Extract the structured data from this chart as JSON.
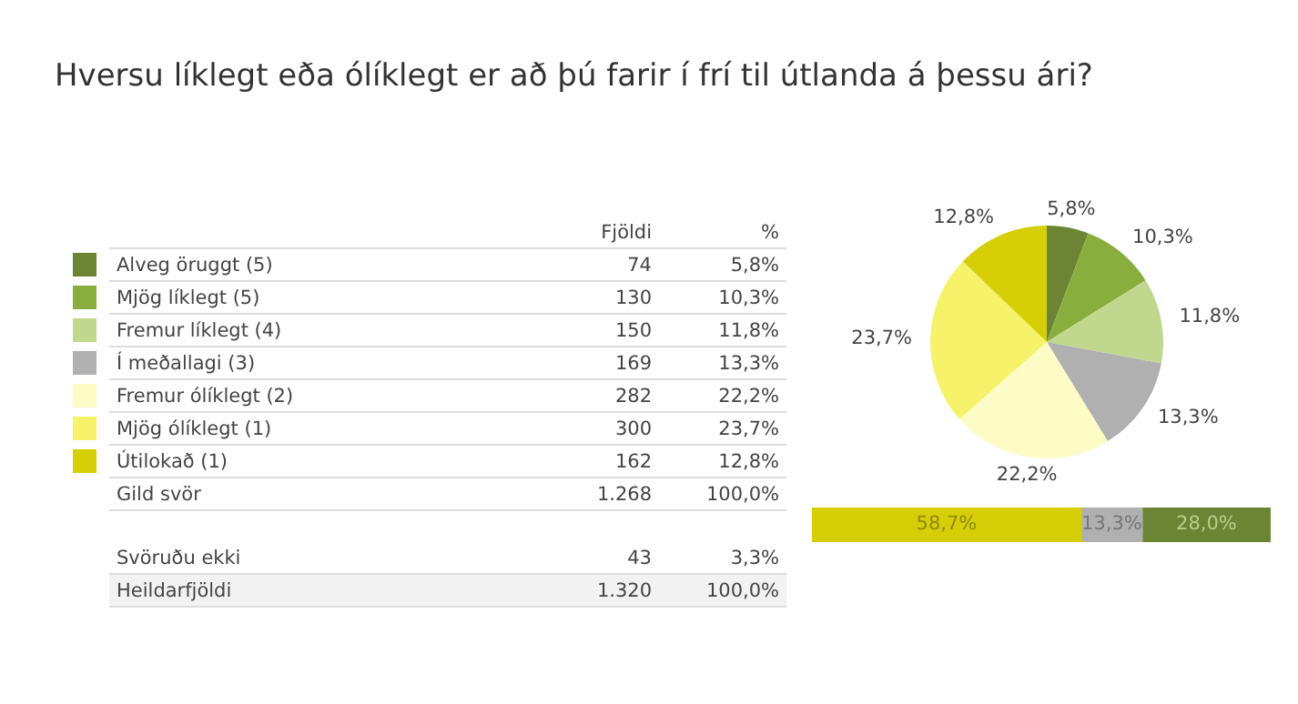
{
  "chart_data": [
    {
      "type": "pie",
      "title": "Hversu líklegt eða ólíklegt er að þú farir í frí til útlanda á þessu ári?",
      "categories": [
        "Alveg öruggt (5)",
        "Mjög líklegt (5)",
        "Fremur líklegt (4)",
        "Í meðallagi (3)",
        "Fremur ólíklegt (2)",
        "Mjög ólíklegt (1)",
        "Útilokað (1)"
      ],
      "values": [
        5.8,
        10.3,
        11.8,
        13.3,
        22.2,
        23.7,
        12.8
      ],
      "legend": "left",
      "value_labels": [
        "5,8%",
        "10,3%",
        "11,8%",
        "13,3%",
        "22,2%",
        "23,7%",
        "12,8%"
      ],
      "colors": [
        "#6b8535",
        "#8aae3e",
        "#c0d88e",
        "#b0b0b0",
        "#fdfcc6",
        "#f6f36a",
        "#d6cf08"
      ],
      "annotations": [
        "Fjöldi",
        "%",
        "74",
        "130",
        "150",
        "169",
        "282",
        "300",
        "162",
        "Gild svör",
        "1.268",
        "100,0%",
        "Svöruðu ekki",
        "43",
        "3,3%",
        "Heildarfjöldi",
        "1.320",
        "100,0%"
      ]
    },
    {
      "type": "bar",
      "orientation": "horizontal",
      "stacked": true,
      "categories": [
        null
      ],
      "xlim": [
        0,
        100
      ],
      "tick_labels": false,
      "series": [
        {
          "color": "#d6cf08",
          "values": [
            58.7
          ],
          "value_labels": [
            "58,7%"
          ]
        },
        {
          "color": "#b0b0b0",
          "values": [
            13.3
          ],
          "value_labels": [
            "13,3%"
          ]
        },
        {
          "color": "#6b8535",
          "values": [
            28.0
          ],
          "value_labels": [
            "28,0%"
          ]
        }
      ]
    }
  ]
}
